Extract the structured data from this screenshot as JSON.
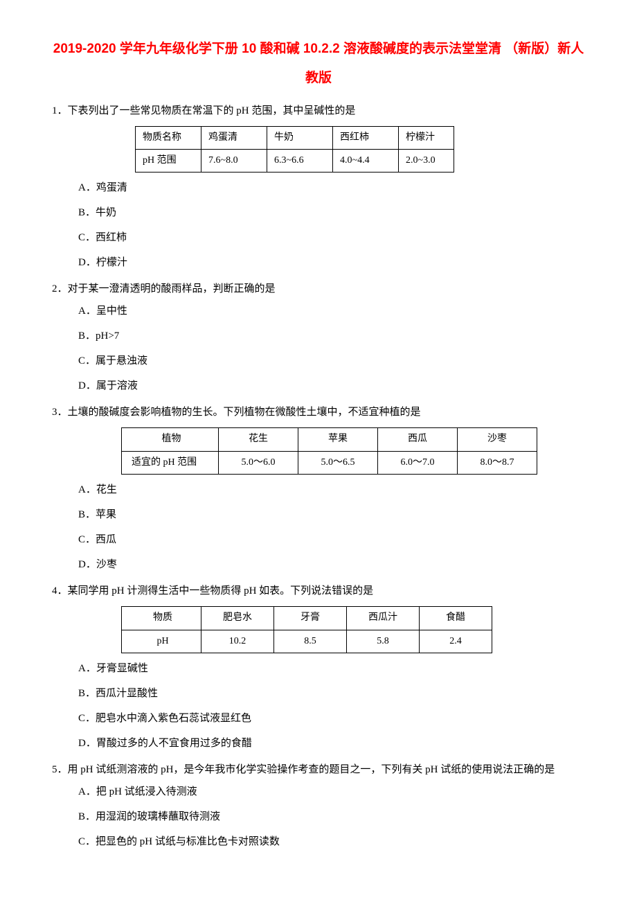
{
  "title": "2019-2020 学年九年级化学下册 10 酸和碱 10.2.2 溶液酸碱度的表示法堂堂清 （新版）新人教版",
  "q1": {
    "text": "1．下表列出了一些常见物质在常温下的 pH 范围，其中呈碱性的是",
    "table": {
      "row1": [
        "物质名称",
        "鸡蛋清",
        "牛奶",
        "西红柿",
        "柠檬汁"
      ],
      "row2": [
        "pH 范围",
        "7.6~8.0",
        "6.3~6.6",
        "4.0~4.4",
        "2.0~3.0"
      ]
    },
    "options": {
      "a": "A．鸡蛋清",
      "b": "B．牛奶",
      "c": "C．西红柿",
      "d": "D．柠檬汁"
    }
  },
  "q2": {
    "text": "2．对于某一澄清透明的酸雨样品，判断正确的是",
    "options": {
      "a": "A．呈中性",
      "b": "B．pH>7",
      "c": "C．属于悬浊液",
      "d": "D．属于溶液"
    }
  },
  "q3": {
    "text": "3．土壤的酸碱度会影响植物的生长。下列植物在微酸性土壤中，不适宜种植的是",
    "table": {
      "row1": [
        "植物",
        "花生",
        "苹果",
        "西瓜",
        "沙枣"
      ],
      "row2": [
        "适宜的 pH 范围",
        "5.0～6.0",
        "5.0～6.5",
        "6.0～7.0",
        "8.0～8.7"
      ]
    },
    "options": {
      "a": "A．花生",
      "b": "B．苹果",
      "c": "C．西瓜",
      "d": "D．沙枣"
    }
  },
  "q4": {
    "text": "4．某同学用 pH 计测得生活中一些物质得 pH 如表。下列说法错误的是",
    "table": {
      "row1": [
        "物质",
        "肥皂水",
        "牙膏",
        "西瓜汁",
        "食醋"
      ],
      "row2": [
        "pH",
        "10.2",
        "8.5",
        "5.8",
        "2.4"
      ]
    },
    "options": {
      "a": "A．牙膏显碱性",
      "b": "B．西瓜汁显酸性",
      "c": "C．肥皂水中滴入紫色石蕊试液显红色",
      "d": "D．胃酸过多的人不宜食用过多的食醋"
    }
  },
  "q5": {
    "text": "5．用 pH 试纸测溶液的 pH，是今年我市化学实验操作考查的题目之一，下列有关 pH 试纸的使用说法正确的是",
    "options": {
      "a": "A．把 pH 试纸浸入待测液",
      "b": "B．用湿润的玻璃棒蘸取待测液",
      "c": "C．把显色的 pH 试纸与标准比色卡对照读数"
    }
  },
  "styles": {
    "title_color": "#ff0000",
    "text_color": "#000000",
    "background_color": "#ffffff",
    "border_color": "#000000",
    "base_font_size": 15,
    "title_font_size": 19,
    "table_font_size": 14,
    "table1_col_widths": [
      95,
      95,
      95,
      95,
      80
    ],
    "table2_col_widths": [
      140,
      115,
      115,
      115,
      115
    ],
    "table3_col_widths": [
      115,
      105,
      105,
      105,
      105
    ]
  }
}
